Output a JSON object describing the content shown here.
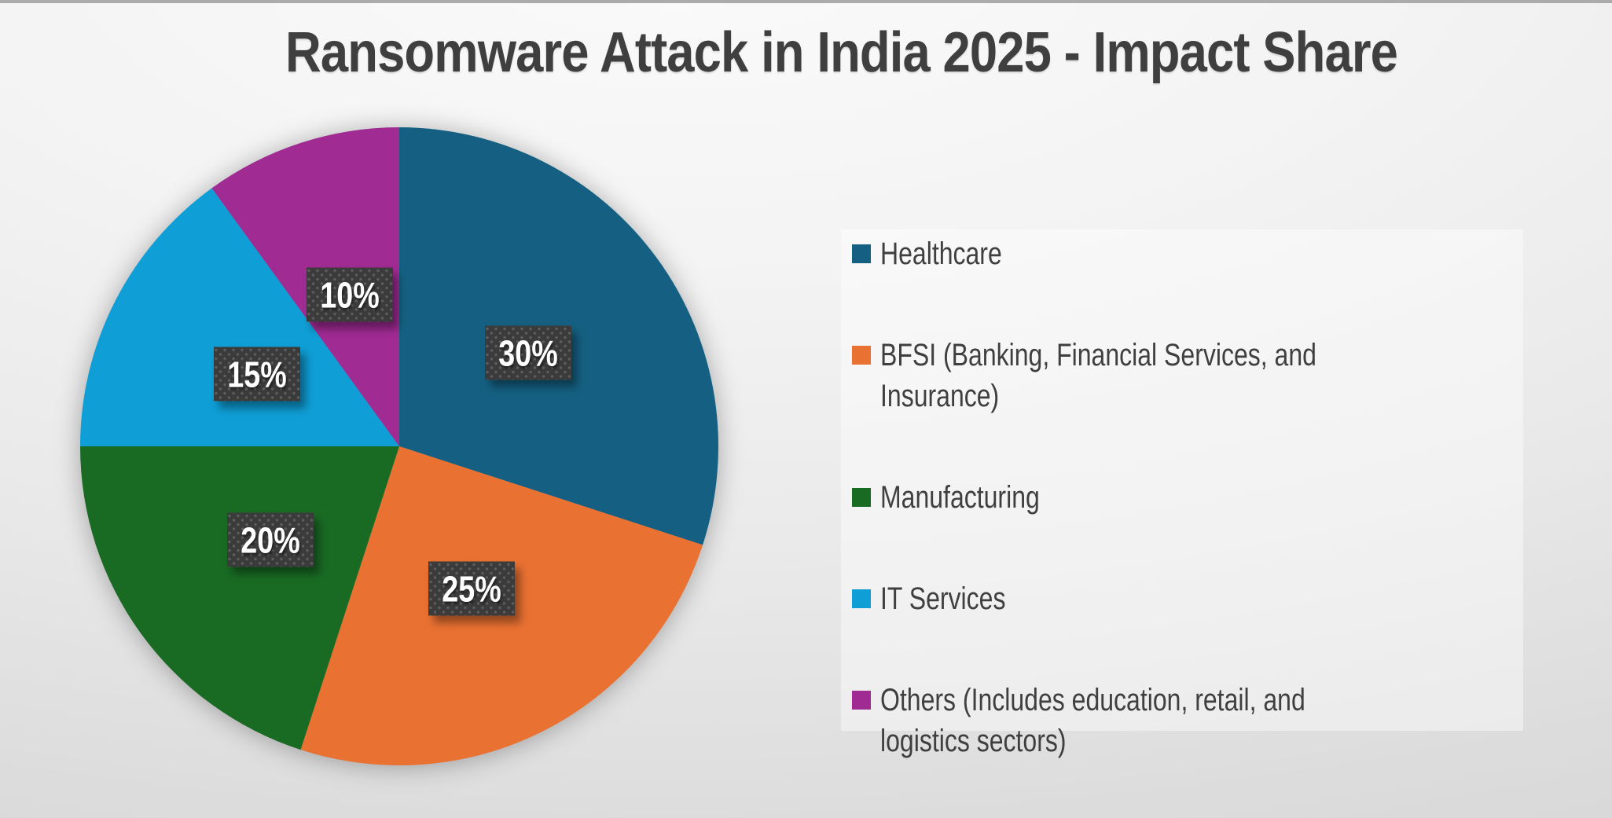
{
  "slide": {
    "title": "Ransomware Attack in India 2025 - Impact Share"
  },
  "chart_data": {
    "type": "pie",
    "title": "Ransomware Attack in India 2025 - Impact Share",
    "categories": [
      "Healthcare",
      "BFSI (Banking, Financial Services, and Insurance)",
      "Manufacturing",
      "IT Services",
      "Others (Includes education, retail, and logistics sectors)"
    ],
    "values": [
      30,
      25,
      20,
      15,
      10
    ],
    "data_labels": [
      "30%",
      "25%",
      "20%",
      "15%",
      "10%"
    ],
    "colors": [
      "#156082",
      "#E97132",
      "#196B24",
      "#0F9ED5",
      "#A02B93"
    ],
    "unit": "%",
    "start_angle_deg": 0,
    "direction": "clockwise",
    "legend_position": "right",
    "label_style": {
      "box_bg": "#3B3B3B",
      "box_dot": "#5E5E5E",
      "text_color": "#FFFFFF"
    }
  },
  "theme": {
    "top_strip_color": "#ABABAB",
    "text_color": "#3F3F3F",
    "legend_panel_bg": "rgba(255,255,255,0.42)"
  }
}
